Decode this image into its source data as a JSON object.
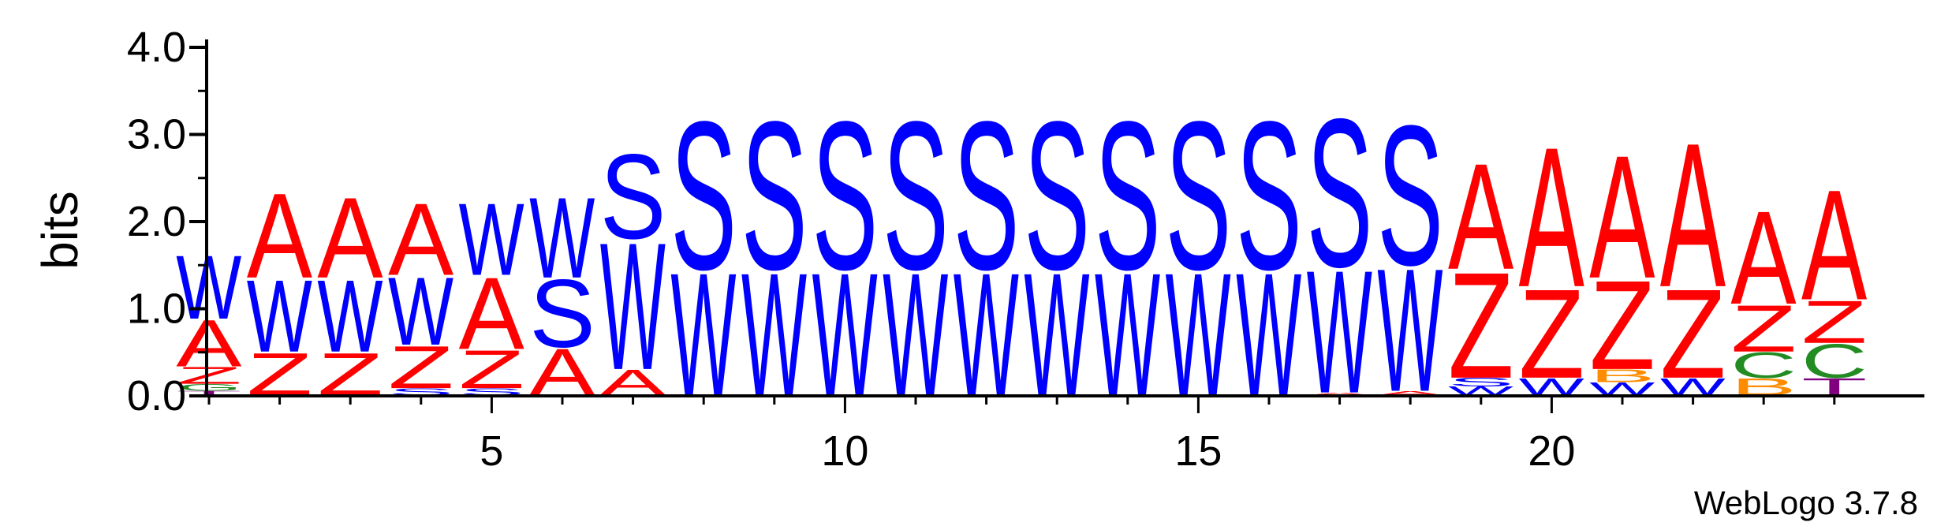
{
  "chart_data": {
    "type": "sequence-logo",
    "ylabel": "bits",
    "ylim": [
      0,
      4.0
    ],
    "y_ticks": [
      "0.0",
      "1.0",
      "2.0",
      "3.0",
      "4.0"
    ],
    "x_ticks": [
      "5",
      "10",
      "15",
      "20"
    ],
    "x_tick_positions": [
      5,
      10,
      15,
      20
    ],
    "n_positions": 24,
    "footer": "WebLogo 3.7.8",
    "colors": {
      "A": "#ff0000",
      "Z": "#ff0000",
      "W": "#0000ff",
      "S": "#0000ff",
      "C": "#228b22",
      "G": "#228b22",
      "B": "#ff8c00",
      "T": "#800080"
    },
    "stacks": [
      [
        {
          "l": "T",
          "h": 0.05
        },
        {
          "l": "G",
          "h": 0.08
        },
        {
          "l": "Z",
          "h": 0.2
        },
        {
          "l": "A",
          "h": 0.55
        },
        {
          "l": "W",
          "h": 0.75
        }
      ],
      [
        {
          "l": "Z",
          "h": 0.5
        },
        {
          "l": "W",
          "h": 0.85
        },
        {
          "l": "A",
          "h": 1.0
        }
      ],
      [
        {
          "l": "Z",
          "h": 0.5
        },
        {
          "l": "W",
          "h": 0.85
        },
        {
          "l": "A",
          "h": 0.95
        }
      ],
      [
        {
          "l": "S",
          "h": 0.08
        },
        {
          "l": "Z",
          "h": 0.5
        },
        {
          "l": "W",
          "h": 0.8
        },
        {
          "l": "A",
          "h": 0.85
        }
      ],
      [
        {
          "l": "S",
          "h": 0.08
        },
        {
          "l": "Z",
          "h": 0.45
        },
        {
          "l": "A",
          "h": 0.85
        },
        {
          "l": "W",
          "h": 0.85
        }
      ],
      [
        {
          "l": "A",
          "h": 0.55
        },
        {
          "l": "S",
          "h": 0.8
        },
        {
          "l": "W",
          "h": 0.95
        }
      ],
      [
        {
          "l": "A",
          "h": 0.3
        },
        {
          "l": "W",
          "h": 1.5
        },
        {
          "l": "S",
          "h": 1.0
        }
      ],
      [
        {
          "l": "W",
          "h": 1.45
        },
        {
          "l": "S",
          "h": 1.75
        }
      ],
      [
        {
          "l": "W",
          "h": 1.45
        },
        {
          "l": "S",
          "h": 1.75
        }
      ],
      [
        {
          "l": "W",
          "h": 1.45
        },
        {
          "l": "S",
          "h": 1.75
        }
      ],
      [
        {
          "l": "W",
          "h": 1.45
        },
        {
          "l": "S",
          "h": 1.75
        }
      ],
      [
        {
          "l": "W",
          "h": 1.45
        },
        {
          "l": "S",
          "h": 1.75
        }
      ],
      [
        {
          "l": "W",
          "h": 1.45
        },
        {
          "l": "S",
          "h": 1.75
        }
      ],
      [
        {
          "l": "W",
          "h": 1.45
        },
        {
          "l": "S",
          "h": 1.75
        }
      ],
      [
        {
          "l": "W",
          "h": 1.45
        },
        {
          "l": "S",
          "h": 1.75
        }
      ],
      [
        {
          "l": "W",
          "h": 1.45
        },
        {
          "l": "S",
          "h": 1.75
        }
      ],
      [
        {
          "l": "A",
          "h": 0.03
        },
        {
          "l": "W",
          "h": 1.45
        },
        {
          "l": "S",
          "h": 1.75
        }
      ],
      [
        {
          "l": "A",
          "h": 0.05
        },
        {
          "l": "W",
          "h": 1.45
        },
        {
          "l": "S",
          "h": 1.65
        }
      ],
      [
        {
          "l": "W",
          "h": 0.1
        },
        {
          "l": "S",
          "h": 0.1
        },
        {
          "l": "Z",
          "h": 1.25
        },
        {
          "l": "A",
          "h": 1.25
        }
      ],
      [
        {
          "l": "W",
          "h": 0.2
        },
        {
          "l": "Z",
          "h": 1.05
        },
        {
          "l": "A",
          "h": 1.65
        }
      ],
      [
        {
          "l": "W",
          "h": 0.15
        },
        {
          "l": "B",
          "h": 0.15
        },
        {
          "l": "Z",
          "h": 1.05
        },
        {
          "l": "A",
          "h": 1.45
        }
      ],
      [
        {
          "l": "W",
          "h": 0.2
        },
        {
          "l": "Z",
          "h": 1.05
        },
        {
          "l": "A",
          "h": 1.7
        }
      ],
      [
        {
          "l": "B",
          "h": 0.2
        },
        {
          "l": "C",
          "h": 0.3
        },
        {
          "l": "Z",
          "h": 0.55
        },
        {
          "l": "A",
          "h": 1.1
        }
      ],
      [
        {
          "l": "T",
          "h": 0.2
        },
        {
          "l": "C",
          "h": 0.4
        },
        {
          "l": "Z",
          "h": 0.5
        },
        {
          "l": "A",
          "h": 1.3
        }
      ]
    ]
  }
}
